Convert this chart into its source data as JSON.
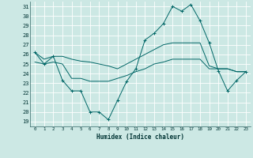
{
  "xlabel": "Humidex (Indice chaleur)",
  "xlim": [
    -0.5,
    23.5
  ],
  "ylim": [
    18.5,
    31.5
  ],
  "yticks": [
    19,
    20,
    21,
    22,
    23,
    24,
    25,
    26,
    27,
    28,
    29,
    30,
    31
  ],
  "xticks": [
    0,
    1,
    2,
    3,
    4,
    5,
    6,
    7,
    8,
    9,
    10,
    11,
    12,
    13,
    14,
    15,
    16,
    17,
    18,
    19,
    20,
    21,
    22,
    23
  ],
  "background_color": "#cce8e4",
  "grid_color": "#ffffff",
  "line_color": "#006666",
  "lines": [
    {
      "x": [
        0,
        1,
        2,
        3,
        4,
        5,
        6,
        7,
        8,
        9,
        10,
        11,
        12,
        13,
        14,
        15,
        16,
        17,
        18,
        19,
        20,
        21,
        22,
        23
      ],
      "y": [
        26.2,
        25.0,
        25.8,
        23.3,
        22.2,
        22.2,
        20.0,
        20.0,
        19.2,
        21.2,
        23.2,
        24.5,
        27.5,
        28.2,
        29.2,
        31.0,
        30.5,
        31.2,
        29.5,
        27.2,
        24.3,
        22.2,
        23.3,
        24.2
      ],
      "marker": "+"
    },
    {
      "x": [
        0,
        1,
        2,
        3,
        4,
        5,
        6,
        7,
        8,
        9,
        10,
        11,
        12,
        13,
        14,
        15,
        16,
        17,
        18,
        19,
        20,
        21,
        22,
        23
      ],
      "y": [
        26.2,
        25.5,
        25.8,
        25.8,
        25.5,
        25.3,
        25.2,
        25.0,
        24.8,
        24.5,
        25.0,
        25.5,
        26.0,
        26.5,
        27.0,
        27.2,
        27.2,
        27.2,
        27.2,
        24.8,
        24.5,
        24.5,
        24.2,
        24.2
      ],
      "marker": null
    },
    {
      "x": [
        0,
        1,
        2,
        3,
        4,
        5,
        6,
        7,
        8,
        9,
        10,
        11,
        12,
        13,
        14,
        15,
        16,
        17,
        18,
        19,
        20,
        21,
        22,
        23
      ],
      "y": [
        25.2,
        25.0,
        25.2,
        25.0,
        23.5,
        23.5,
        23.2,
        23.2,
        23.2,
        23.5,
        23.8,
        24.2,
        24.5,
        25.0,
        25.2,
        25.5,
        25.5,
        25.5,
        25.5,
        24.5,
        24.5,
        24.5,
        24.2,
        24.2
      ],
      "marker": null
    }
  ]
}
